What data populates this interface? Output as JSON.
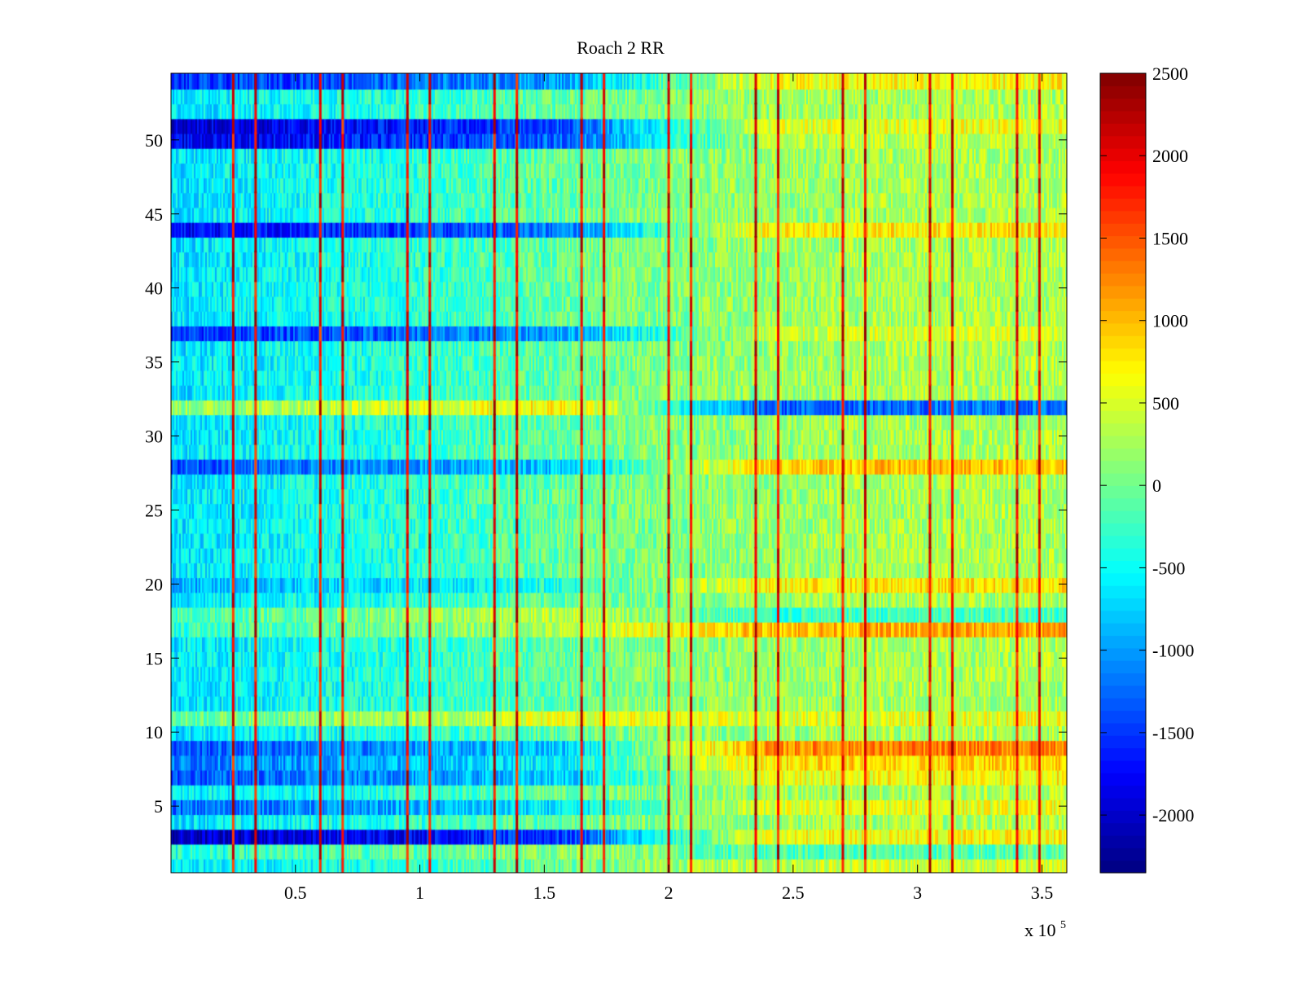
{
  "chart_data": {
    "type": "heatmap",
    "title": "Roach 2 RR",
    "xlabel": "",
    "ylabel": "",
    "x_multiplier_label": "x 10",
    "x_multiplier_exponent": "5",
    "xlim": [
      0,
      3.6
    ],
    "ylim": [
      0.5,
      54.5
    ],
    "xticks": [
      {
        "value": 0.5,
        "label": "0.5"
      },
      {
        "value": 1,
        "label": "1"
      },
      {
        "value": 1.5,
        "label": "1.5"
      },
      {
        "value": 2,
        "label": "2"
      },
      {
        "value": 2.5,
        "label": "2.5"
      },
      {
        "value": 3,
        "label": "3"
      },
      {
        "value": 3.5,
        "label": "3.5"
      }
    ],
    "yticks": [
      {
        "value": 5,
        "label": "5"
      },
      {
        "value": 10,
        "label": "10"
      },
      {
        "value": 15,
        "label": "15"
      },
      {
        "value": 20,
        "label": "20"
      },
      {
        "value": 25,
        "label": "25"
      },
      {
        "value": 30,
        "label": "30"
      },
      {
        "value": 35,
        "label": "35"
      },
      {
        "value": 40,
        "label": "40"
      },
      {
        "value": 45,
        "label": "45"
      },
      {
        "value": 50,
        "label": "50"
      }
    ],
    "rows": 54,
    "colormap": "jet",
    "colorbar": {
      "clim": [
        -2350,
        2500
      ],
      "ticks": [
        {
          "value": 2500,
          "label": "2500"
        },
        {
          "value": 2000,
          "label": "2000"
        },
        {
          "value": 1500,
          "label": "1500"
        },
        {
          "value": 1000,
          "label": "1000"
        },
        {
          "value": 500,
          "label": "500"
        },
        {
          "value": 0,
          "label": "0"
        },
        {
          "value": -500,
          "label": "-500"
        },
        {
          "value": -1000,
          "label": "-1000"
        },
        {
          "value": -1500,
          "label": "-1500"
        },
        {
          "value": -2000,
          "label": "-2000"
        }
      ]
    },
    "vertical_spike_lines_x": [
      0.25,
      0.34,
      0.6,
      0.69,
      0.95,
      1.04,
      1.3,
      1.39,
      1.65,
      1.74,
      2.0,
      2.09,
      2.35,
      2.44,
      2.7,
      2.79,
      3.05,
      3.14,
      3.4,
      3.49
    ],
    "spike_value": 2400,
    "approx_baseline": {
      "x_segments": [
        0,
        0.9,
        1.8,
        2.7,
        3.6
      ],
      "values_per_segment": [
        -650,
        -350,
        50,
        250,
        300
      ]
    },
    "row_offsets": [
      {
        "row": 1,
        "offset": 0,
        "offset_late": 200
      },
      {
        "row": 2,
        "offset": 250,
        "offset_late": -400
      },
      {
        "row": 3,
        "offset": -1400,
        "offset_late": 400
      },
      {
        "row": 5,
        "offset": -600,
        "offset_late": 300
      },
      {
        "row": 7,
        "offset": -700,
        "offset_late": 400
      },
      {
        "row": 8,
        "offset": -500,
        "offset_late": 600
      },
      {
        "row": 9,
        "offset": -700,
        "offset_late": 1000
      },
      {
        "row": 11,
        "offset": 600,
        "offset_late": 300
      },
      {
        "row": 17,
        "offset": 350,
        "offset_late": 800
      },
      {
        "row": 18,
        "offset": 450,
        "offset_late": -500
      },
      {
        "row": 20,
        "offset": -300,
        "offset_late": 500
      },
      {
        "row": 28,
        "offset": -700,
        "offset_late": 700
      },
      {
        "row": 32,
        "offset": 800,
        "offset_late": -1500
      },
      {
        "row": 37,
        "offset": -900,
        "offset_late": 200
      },
      {
        "row": 44,
        "offset": -1100,
        "offset_late": 500
      },
      {
        "row": 50,
        "offset": -1200,
        "offset_late": 100
      },
      {
        "row": 51,
        "offset": -1300,
        "offset_late": 300
      },
      {
        "row": 54,
        "offset": -900,
        "offset_late": 400
      }
    ]
  }
}
